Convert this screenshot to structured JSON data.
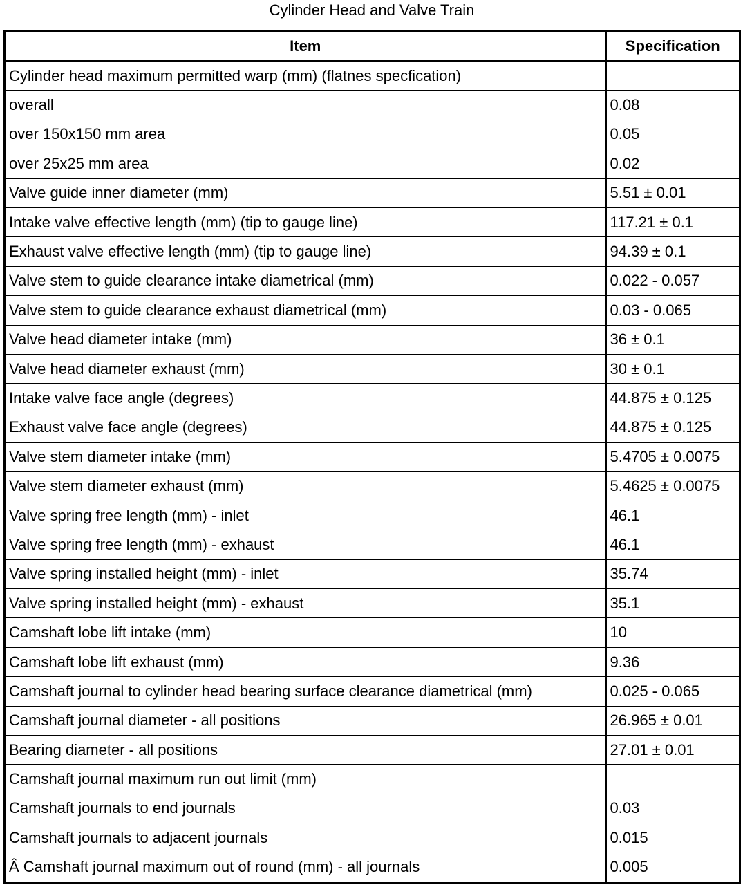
{
  "title": "Cylinder Head and Valve Train",
  "headers": [
    "Item",
    "Specification"
  ],
  "rows": [
    [
      "Cylinder head maximum permitted warp (mm) (flatnes specfication)",
      ""
    ],
    [
      "overall",
      "0.08"
    ],
    [
      "over 150x150 mm area",
      "0.05"
    ],
    [
      "over 25x25 mm area",
      "0.02"
    ],
    [
      "Valve guide inner diameter (mm)",
      "5.51 ± 0.01"
    ],
    [
      "Intake valve effective length (mm) (tip to gauge line)",
      "117.21 ± 0.1"
    ],
    [
      "Exhaust valve effective length (mm) (tip to gauge line)",
      "94.39 ± 0.1"
    ],
    [
      "Valve stem to guide clearance intake diametrical (mm)",
      "0.022 - 0.057"
    ],
    [
      "Valve stem to guide clearance exhaust diametrical (mm)",
      "0.03 - 0.065"
    ],
    [
      "Valve head diameter intake (mm)",
      "36 ± 0.1"
    ],
    [
      "Valve head diameter exhaust (mm)",
      "30 ± 0.1"
    ],
    [
      "Intake valve face angle (degrees)",
      "44.875 ± 0.125"
    ],
    [
      "Exhaust valve face angle (degrees)",
      "44.875 ± 0.125"
    ],
    [
      "Valve stem diameter intake (mm)",
      "5.4705 ± 0.0075"
    ],
    [
      "Valve stem diameter exhaust (mm)",
      "5.4625 ± 0.0075"
    ],
    [
      "Valve spring free length (mm) - inlet",
      "46.1"
    ],
    [
      "Valve spring free length (mm) - exhaust",
      "46.1"
    ],
    [
      "Valve spring installed height (mm) - inlet",
      "35.74"
    ],
    [
      "Valve spring installed height (mm) - exhaust",
      "35.1"
    ],
    [
      "Camshaft lobe lift intake (mm)",
      "10"
    ],
    [
      "Camshaft lobe lift exhaust (mm)",
      "9.36"
    ],
    [
      "Camshaft journal to cylinder head bearing surface clearance diametrical (mm)",
      "0.025 - 0.065"
    ],
    [
      "Camshaft journal diameter - all positions",
      "26.965 ± 0.01"
    ],
    [
      "Bearing diameter - all positions",
      "27.01 ± 0.01"
    ],
    [
      "Camshaft journal maximum run out limit (mm)",
      ""
    ],
    [
      "Camshaft journals to end journals",
      "0.03"
    ],
    [
      "Camshaft journals to adjacent journals",
      "0.015"
    ],
    [
      "Â Camshaft journal maximum out of round (mm) - all journals",
      "0.005"
    ]
  ]
}
